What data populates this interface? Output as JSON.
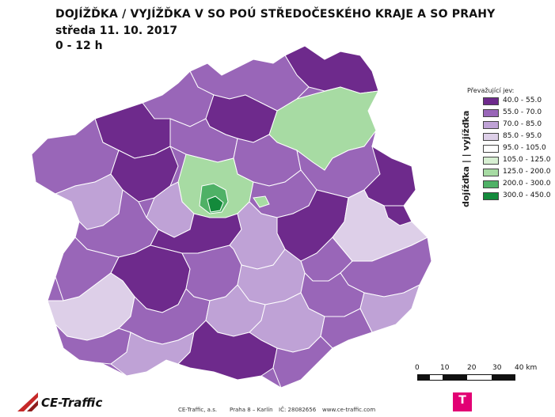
{
  "title": {
    "line1": "DOJÍŽĎKA / VYJÍŽĎKA V SO POÚ STŘEDOČESKÉHO KRAJE A SO PRAHY",
    "line2": "středa 11. 10. 2017",
    "line3": "0 - 12 h"
  },
  "legend": {
    "title": "Převažující jev:",
    "axis_label": "dojížďka | | vyjížďka",
    "classes": [
      {
        "label": "40.0 - 55.0",
        "color": "#6e2a8c"
      },
      {
        "label": "55.0 - 70.0",
        "color": "#9966b8"
      },
      {
        "label": "70.0 - 85.0",
        "color": "#bfa2d6"
      },
      {
        "label": "85.0 - 95.0",
        "color": "#ddcfe8"
      },
      {
        "label": "95.0 - 105.0",
        "color": "#ffffff"
      },
      {
        "label": "105.0 - 125.0",
        "color": "#d7efd2"
      },
      {
        "label": "125.0 - 200.0",
        "color": "#a7dba3"
      },
      {
        "label": "200.0 - 300.0",
        "color": "#4fb166"
      },
      {
        "label": "300.0 - 450.0",
        "color": "#138a3b"
      }
    ]
  },
  "scale": {
    "ticks": [
      "0",
      "10",
      "20",
      "30",
      "40 km"
    ]
  },
  "footer": {
    "brand": "CE-Traffic",
    "company": "CE-Traffic, a.s.",
    "address": "Praha 8 – Karlín",
    "ico": "IČ: 28082656",
    "web": "www.ce-traffic.com",
    "partner_logo": "T"
  }
}
